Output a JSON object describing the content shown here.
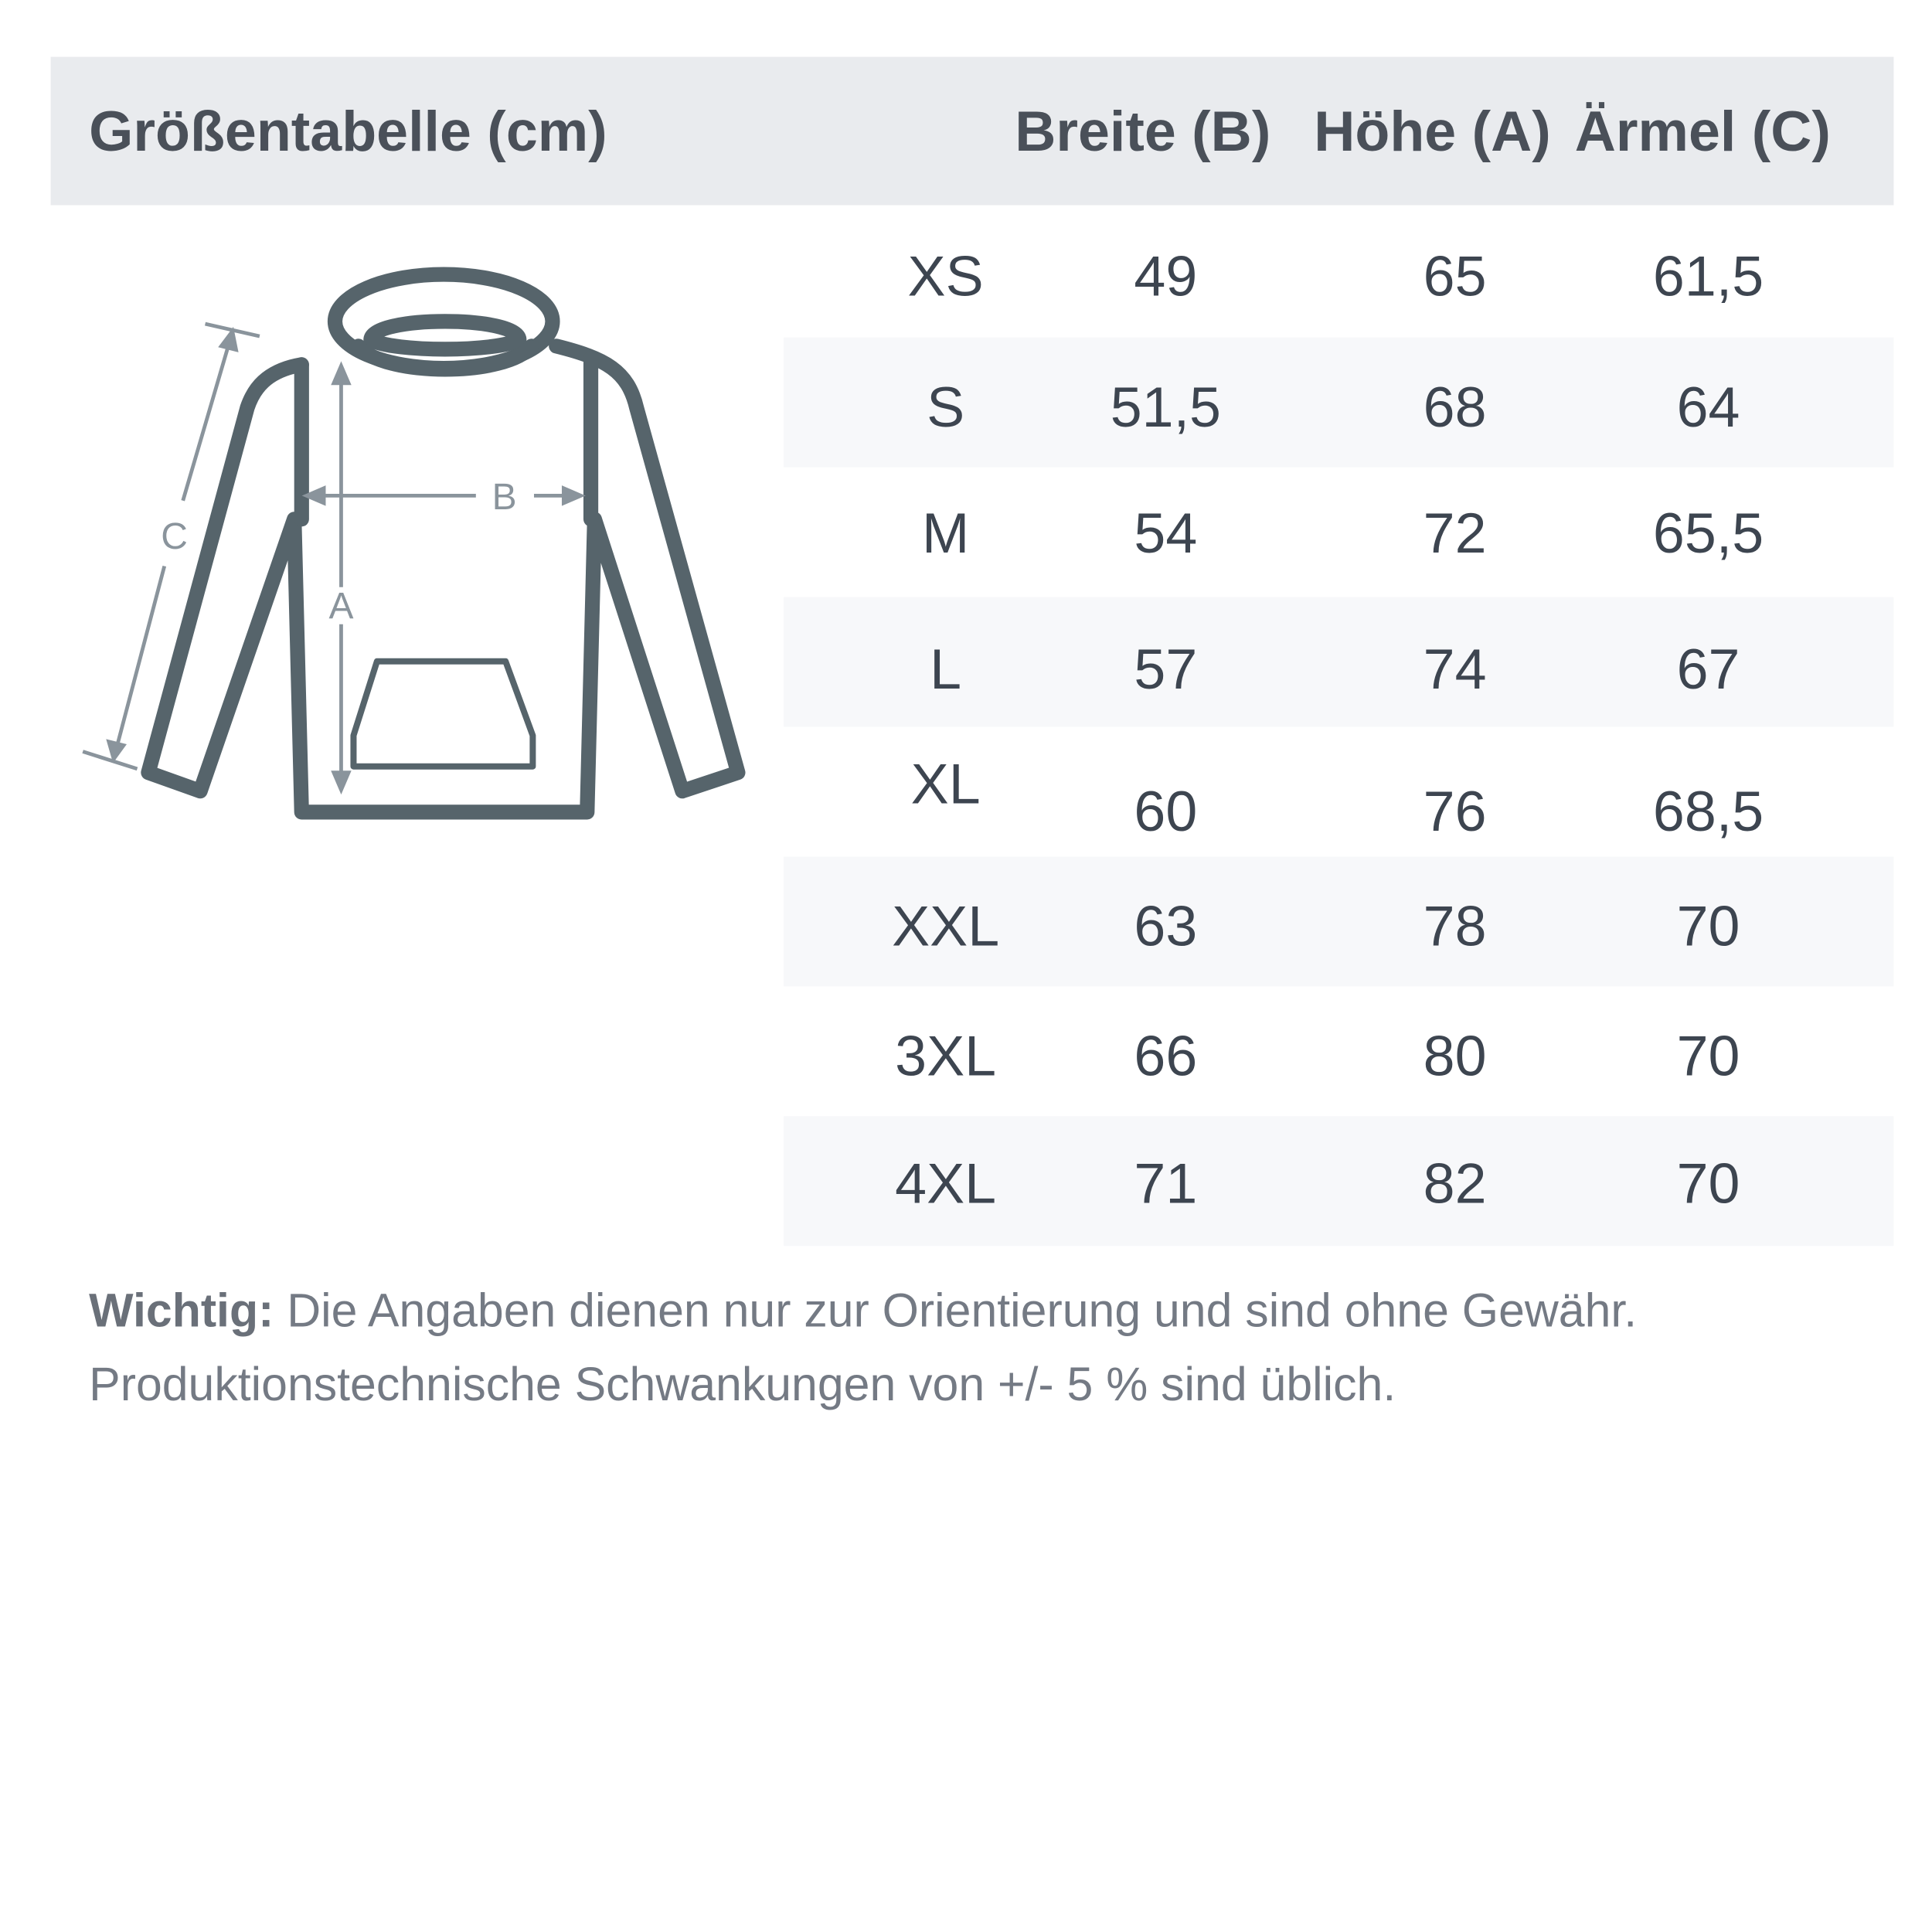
{
  "header": {
    "title": "Größentabelle (cm)",
    "col_width": "Breite (B)",
    "col_height": "Höhe (A)",
    "col_sleeve": "Ärmel (C)"
  },
  "diagram": {
    "label_a": "A",
    "label_b": "B",
    "label_c": "C"
  },
  "rows": [
    {
      "size": "XS",
      "width": "49",
      "height": "65",
      "sleeve": "61,5"
    },
    {
      "size": "S",
      "width": "51,5",
      "height": "68",
      "sleeve": "64"
    },
    {
      "size": "M",
      "width": "54",
      "height": "72",
      "sleeve": "65,5"
    },
    {
      "size": "L",
      "width": "57",
      "height": "74",
      "sleeve": "67"
    },
    {
      "size": "XL",
      "width": "60",
      "height": "76",
      "sleeve": "68,5"
    },
    {
      "size": "XXL",
      "width": "63",
      "height": "78",
      "sleeve": "70"
    },
    {
      "size": "3XL",
      "width": "66",
      "height": "80",
      "sleeve": "70"
    },
    {
      "size": "4XL",
      "width": "71",
      "height": "82",
      "sleeve": "70"
    }
  ],
  "note": {
    "bold": "Wichtig:",
    "line1": " Die Angaben dienen nur zur Orientierung und sind ohne Gewähr.",
    "line2": "Produktionstechnische Schwankungen von +/- 5 % sind üblich."
  },
  "colors": {
    "header_bg": "#e9ebee",
    "stripe": "#f7f8fa",
    "garment": "#56646b",
    "measure": "#8a949c"
  }
}
